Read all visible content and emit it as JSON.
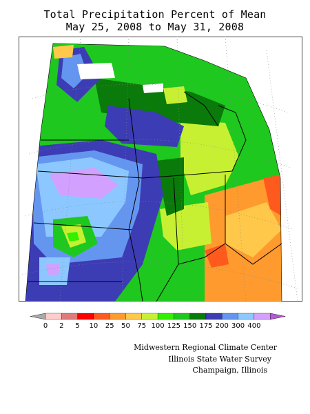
{
  "title": "Total Precipitation Percent of Mean",
  "subtitle": "May 25, 2008 to May 31, 2008",
  "legend": {
    "ticks": [
      "0",
      "2",
      "5",
      "10",
      "25",
      "50",
      "75",
      "100",
      "125",
      "150",
      "175",
      "200",
      "300",
      "400"
    ],
    "colors": [
      "#ffcccc",
      "#e07b7b",
      "#ff0000",
      "#ff5a1e",
      "#ff9a2e",
      "#ffc84a",
      "#c8f032",
      "#32f000",
      "#1ec81e",
      "#0a7a0a",
      "#3c3cb4",
      "#6496f0",
      "#8cc8ff",
      "#d2a0ff"
    ],
    "low_arrow_color": "#aaaaaa",
    "high_arrow_color": "#b45ad2"
  },
  "credits": [
    "Midwestern Regional Climate Center",
    "Illinois State Water Survey",
    "Champaign, Illinois"
  ]
}
